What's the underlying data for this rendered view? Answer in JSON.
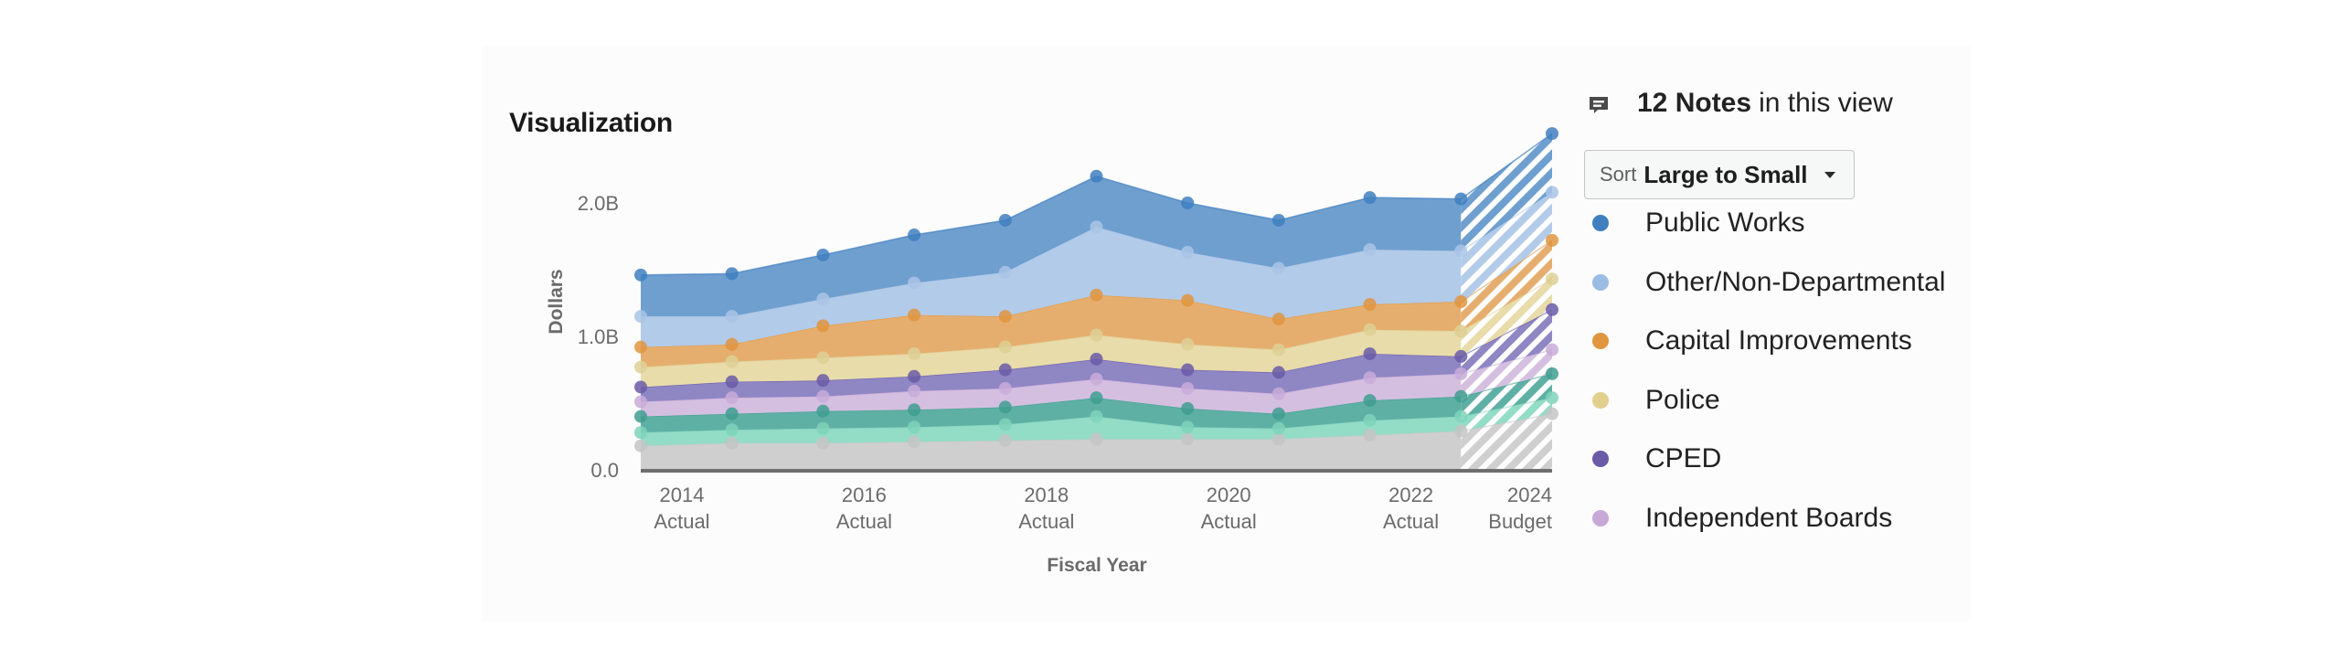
{
  "title": "Visualization",
  "notes": {
    "icon": "note-icon",
    "count_label": "12 Notes",
    "suffix": "in this view"
  },
  "sort": {
    "prefix": "Sort",
    "selected": "Large to Small"
  },
  "legend": [
    {
      "label": "Public Works",
      "color": "#3f7fc0"
    },
    {
      "label": "Other/Non-Departmental",
      "color": "#9bbce3"
    },
    {
      "label": "Capital Improvements",
      "color": "#e0953f"
    },
    {
      "label": "Police",
      "color": "#e1d08e"
    },
    {
      "label": "CPED",
      "color": "#6a5aa8"
    },
    {
      "label": "Independent Boards",
      "color": "#c7a9d6"
    }
  ],
  "chart_data": {
    "type": "area",
    "stacked": true,
    "title": "Visualization",
    "xlabel": "Fiscal Year",
    "ylabel": "Dollars",
    "ylim": [
      0,
      2500000000
    ],
    "yticks": [
      {
        "value": 0,
        "label": "0.0"
      },
      {
        "value": 1000000000,
        "label": "1.0B"
      },
      {
        "value": 2000000000,
        "label": "2.0B"
      }
    ],
    "x": [
      2014,
      2015,
      2016,
      2017,
      2018,
      2019,
      2020,
      2021,
      2022,
      2023,
      2024
    ],
    "xtick_labels": [
      {
        "x": 2014,
        "year": "2014",
        "kind": "Actual"
      },
      {
        "x": 2016,
        "year": "2016",
        "kind": "Actual"
      },
      {
        "x": 2018,
        "year": "2018",
        "kind": "Actual"
      },
      {
        "x": 2020,
        "year": "2020",
        "kind": "Actual"
      },
      {
        "x": 2022,
        "year": "2022",
        "kind": "Actual"
      },
      {
        "x": 2024,
        "year": "2024",
        "kind": "Budget"
      }
    ],
    "budget_from_x": 2023,
    "cumulative_note": "Values are cumulative stack tops (billions of dollars).",
    "series": [
      {
        "name": "",
        "color": "#cfcfcf",
        "point_color": "#c4c4c4",
        "values": [
          0.18,
          0.2,
          0.2,
          0.21,
          0.22,
          0.23,
          0.23,
          0.23,
          0.26,
          0.29,
          0.42
        ]
      },
      {
        "name": "",
        "color": "#93dcc6",
        "point_color": "#7fd3bb",
        "values": [
          0.28,
          0.3,
          0.31,
          0.32,
          0.34,
          0.4,
          0.32,
          0.31,
          0.37,
          0.4,
          0.54
        ]
      },
      {
        "name": "",
        "color": "#5fb0a4",
        "point_color": "#3f9e90",
        "values": [
          0.4,
          0.42,
          0.44,
          0.45,
          0.47,
          0.54,
          0.46,
          0.42,
          0.52,
          0.55,
          0.72
        ]
      },
      {
        "name": "Independent Boards",
        "color": "#d5bfe0",
        "point_color": "#c9abd9",
        "values": [
          0.51,
          0.54,
          0.55,
          0.59,
          0.61,
          0.68,
          0.61,
          0.57,
          0.69,
          0.72,
          0.9
        ]
      },
      {
        "name": "CPED",
        "color": "#8f86c4",
        "point_color": "#6a5aa8",
        "values": [
          0.62,
          0.66,
          0.67,
          0.7,
          0.75,
          0.83,
          0.75,
          0.73,
          0.87,
          0.85,
          1.2
        ]
      },
      {
        "name": "Police",
        "color": "#e8dcaa",
        "point_color": "#ddd095",
        "values": [
          0.77,
          0.81,
          0.84,
          0.87,
          0.92,
          1.01,
          0.94,
          0.9,
          1.05,
          1.04,
          1.43
        ]
      },
      {
        "name": "Capital Improvements",
        "color": "#e6ae6e",
        "point_color": "#e0953f",
        "values": [
          0.92,
          0.94,
          1.08,
          1.16,
          1.15,
          1.31,
          1.27,
          1.13,
          1.24,
          1.26,
          1.72
        ]
      },
      {
        "name": "Other/Non-Departmental",
        "color": "#b2cbe9",
        "point_color": "#a9c4e6",
        "values": [
          1.15,
          1.15,
          1.28,
          1.4,
          1.48,
          1.82,
          1.63,
          1.51,
          1.65,
          1.64,
          2.08
        ]
      },
      {
        "name": "Public Works",
        "color": "#6f9fcf",
        "point_color": "#3f7fc0",
        "values": [
          1.46,
          1.47,
          1.61,
          1.76,
          1.87,
          2.2,
          2.0,
          1.87,
          2.04,
          2.03,
          2.52
        ]
      }
    ],
    "grid": false,
    "legend_position": "right"
  }
}
